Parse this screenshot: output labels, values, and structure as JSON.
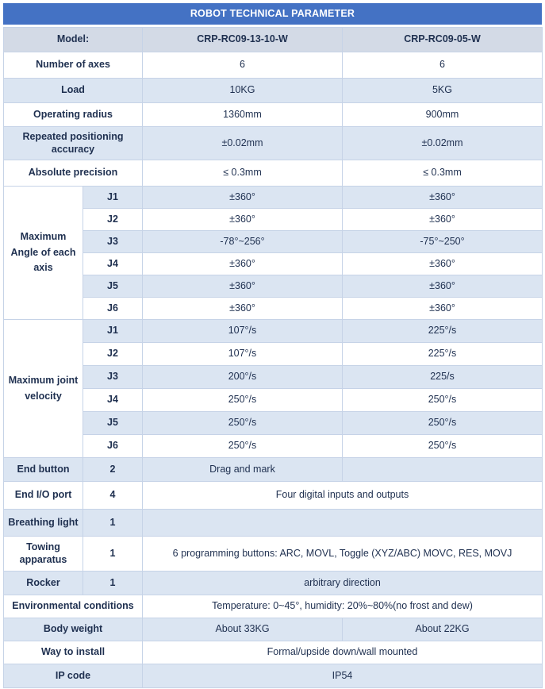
{
  "title": "ROBOT TECHNICAL PARAMETER",
  "colors": {
    "header_bg": "#4472c4",
    "header_text": "#ffffff",
    "band_bg": "#dbe5f2",
    "model_row_bg": "#d3dae6",
    "border": "#c6d3e7",
    "text": "#1f3050"
  },
  "table": {
    "model_row": {
      "label": "Model:",
      "col1": "CRP-RC09-13-10-W",
      "col2": "CRP-RC09-05-W"
    },
    "simple_rows": [
      {
        "label": "Number of axes",
        "col1": "6",
        "col2": "6"
      },
      {
        "label": "Load",
        "col1": "10KG",
        "col2": "5KG"
      },
      {
        "label": "Operating radius",
        "col1": "1360mm",
        "col2": "900mm"
      },
      {
        "label": "Repeated positioning accuracy",
        "col1": "±0.02mm",
        "col2": "±0.02mm"
      },
      {
        "label": "Absolute precision",
        "col1": "≤ 0.3mm",
        "col2": "≤ 0.3mm"
      }
    ],
    "angle_group": {
      "label": "Maximum Angle of each axis",
      "rows": [
        {
          "joint": "J1",
          "col1": "±360°",
          "col2": "±360°"
        },
        {
          "joint": "J2",
          "col1": "±360°",
          "col2": "±360°"
        },
        {
          "joint": "J3",
          "col1": "-78°~256°",
          "col2": "-75°~250°"
        },
        {
          "joint": "J4",
          "col1": "±360°",
          "col2": "±360°"
        },
        {
          "joint": "J5",
          "col1": "±360°",
          "col2": "±360°"
        },
        {
          "joint": "J6",
          "col1": "±360°",
          "col2": "±360°"
        }
      ]
    },
    "velocity_group": {
      "label": "Maximum joint velocity",
      "rows": [
        {
          "joint": "J1",
          "col1": "107°/s",
          "col2": "225°/s"
        },
        {
          "joint": "J2",
          "col1": "107°/s",
          "col2": "225°/s"
        },
        {
          "joint": "J3",
          "col1": "200°/s",
          "col2": "225/s"
        },
        {
          "joint": "J4",
          "col1": "250°/s",
          "col2": "250°/s"
        },
        {
          "joint": "J5",
          "col1": "250°/s",
          "col2": "250°/s"
        },
        {
          "joint": "J6",
          "col1": "250°/s",
          "col2": "250°/s"
        }
      ]
    },
    "feature_rows": [
      {
        "label": "End button",
        "qty": "2",
        "desc": "Drag and mark"
      },
      {
        "label": "End I/O port",
        "qty": "4",
        "desc": "Four digital inputs and outputs"
      },
      {
        "label": "Breathing light",
        "qty": "1",
        "desc": ""
      },
      {
        "label": "Towing apparatus",
        "qty": "1",
        "desc": "6 programming buttons: ARC, MOVL, Toggle (XYZ/ABC) MOVC, RES, MOVJ"
      },
      {
        "label": "Rocker",
        "qty": "1",
        "desc": "arbitrary direction"
      }
    ],
    "bottom_rows": [
      {
        "label": "Environmental conditions",
        "value": "Temperature: 0~45°, humidity: 20%~80%(no frost and dew)"
      },
      {
        "label": "Body weight",
        "col1": "About 33KG",
        "col2": "About 22KG"
      },
      {
        "label": "Way to install",
        "value": "Formal/upside down/wall mounted"
      },
      {
        "label": "IP code",
        "value": "IP54"
      }
    ]
  }
}
